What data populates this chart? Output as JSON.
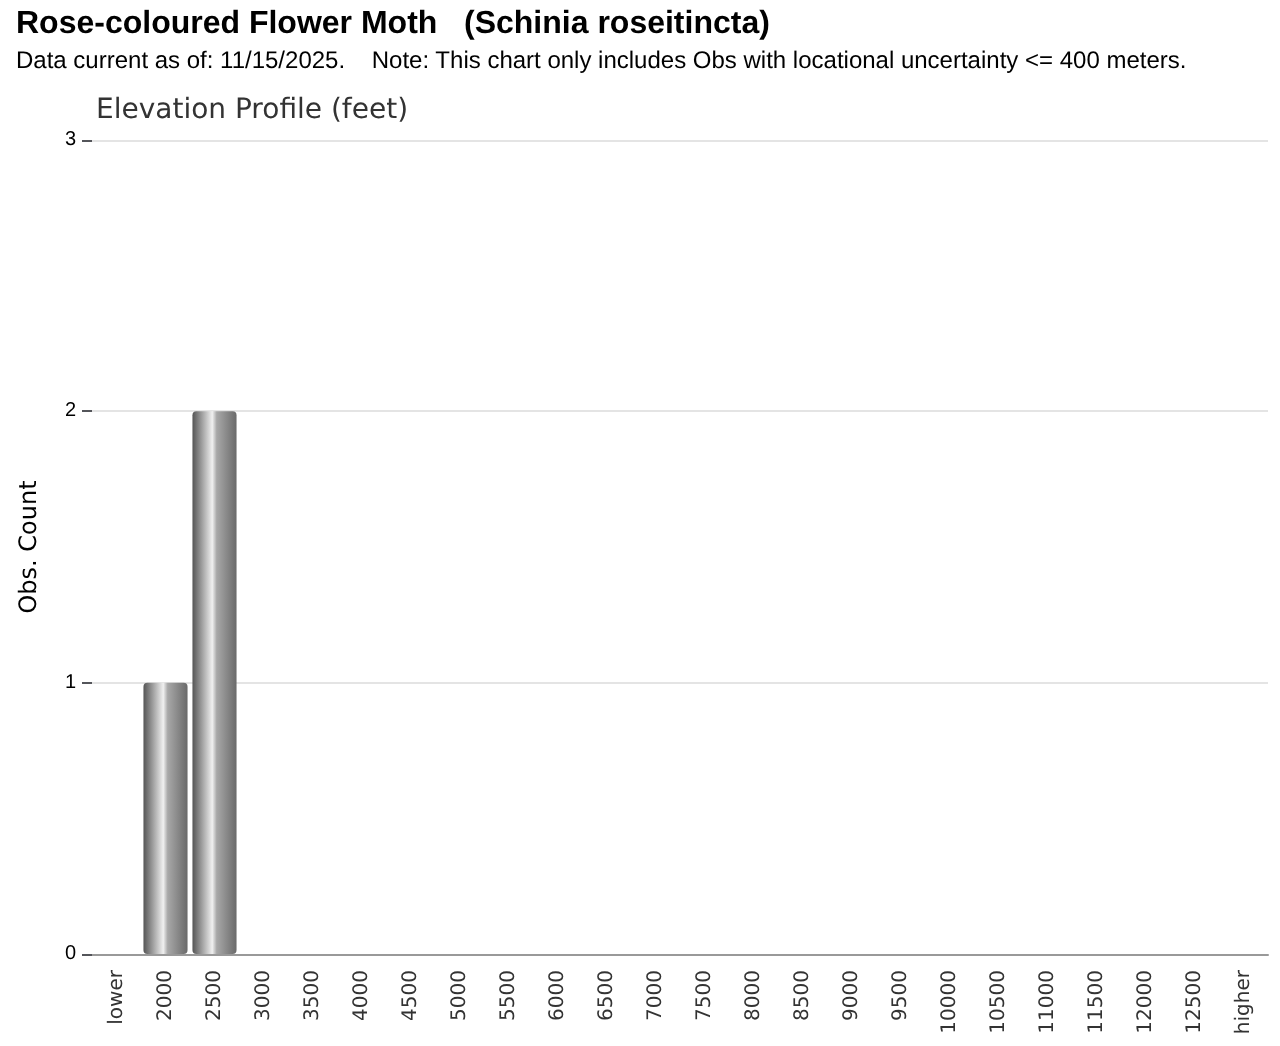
{
  "chart_data": {
    "type": "bar",
    "title": "Rose-coloured Flower Moth   (Schinia roseitincta)",
    "subtitle": "Data current as of: 11/15/2025.    Note: This chart only includes Obs with locational uncertainty <= 400 meters.",
    "ylabel": "Obs. Count",
    "annotations": [
      "Elevation Profile (feet)"
    ],
    "categories": [
      "lower",
      "2000",
      "2500",
      "3000",
      "3500",
      "4000",
      "4500",
      "5000",
      "5500",
      "6000",
      "6500",
      "7000",
      "7500",
      "8000",
      "8500",
      "9000",
      "9500",
      "10000",
      "10500",
      "11000",
      "11500",
      "12000",
      "12500",
      "higher"
    ],
    "values": [
      0,
      1,
      2,
      0,
      0,
      0,
      0,
      0,
      0,
      0,
      0,
      0,
      0,
      0,
      0,
      0,
      0,
      0,
      0,
      0,
      0,
      0,
      0,
      0
    ],
    "color": "#a8a8a8",
    "ylim": [
      0,
      3
    ],
    "yticks": [
      0,
      1,
      2,
      3
    ],
    "grid": "y"
  }
}
